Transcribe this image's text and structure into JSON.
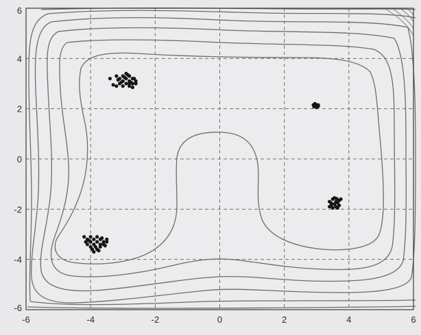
{
  "chart_data": {
    "type": "scatter",
    "xlim": [
      -6,
      6
    ],
    "ylim": [
      -6,
      6
    ],
    "xticks": [
      "-6",
      "-4",
      "-2",
      "0",
      "2",
      "4",
      "6"
    ],
    "yticks": [
      "-6",
      "-4",
      "-2",
      "0",
      "2",
      "4",
      "6"
    ],
    "grid": true,
    "overlay": "contour",
    "colors": {
      "background": "#ececee",
      "points": "#151515",
      "contours": "#6c6c6c",
      "grid": "#6f6f6f"
    },
    "clusters": [
      {
        "center": [
          -3.0,
          3.1
        ],
        "points": [
          [
            -3.2,
            3.3
          ],
          [
            -3.1,
            3.2
          ],
          [
            -3.0,
            3.3
          ],
          [
            -2.9,
            3.4
          ],
          [
            -2.8,
            3.3
          ],
          [
            -2.7,
            3.2
          ],
          [
            -2.6,
            3.1
          ],
          [
            -2.7,
            3.0
          ],
          [
            -2.8,
            2.9
          ],
          [
            -2.9,
            3.0
          ],
          [
            -3.0,
            3.1
          ],
          [
            -3.1,
            3.0
          ],
          [
            -3.2,
            2.9
          ],
          [
            -3.3,
            2.95
          ],
          [
            -3.0,
            2.9
          ],
          [
            -2.8,
            3.1
          ],
          [
            -2.9,
            3.2
          ],
          [
            -2.7,
            2.85
          ],
          [
            -2.6,
            3.0
          ],
          [
            -3.4,
            3.2
          ],
          [
            -2.85,
            3.35
          ],
          [
            -3.05,
            3.05
          ],
          [
            -2.75,
            3.05
          ],
          [
            -3.15,
            3.15
          ],
          [
            -2.95,
            3.25
          ],
          [
            -2.65,
            3.2
          ],
          [
            -2.8,
            3.0
          ]
        ]
      },
      {
        "center": [
          3.0,
          2.1
        ],
        "points": [
          [
            2.9,
            2.15
          ],
          [
            2.95,
            2.1
          ],
          [
            3.0,
            2.15
          ],
          [
            3.05,
            2.1
          ],
          [
            3.0,
            2.05
          ],
          [
            2.95,
            2.2
          ],
          [
            3.05,
            2.15
          ],
          [
            2.92,
            2.08
          ]
        ]
      },
      {
        "center": [
          3.6,
          -1.8
        ],
        "points": [
          [
            3.4,
            -1.7
          ],
          [
            3.5,
            -1.6
          ],
          [
            3.6,
            -1.7
          ],
          [
            3.7,
            -1.65
          ],
          [
            3.55,
            -1.8
          ],
          [
            3.45,
            -1.85
          ],
          [
            3.65,
            -1.75
          ],
          [
            3.7,
            -1.85
          ],
          [
            3.6,
            -1.9
          ],
          [
            3.5,
            -1.95
          ],
          [
            3.4,
            -1.9
          ],
          [
            3.75,
            -1.6
          ],
          [
            3.55,
            -1.55
          ],
          [
            3.65,
            -1.95
          ],
          [
            3.45,
            -1.75
          ],
          [
            3.62,
            -1.58
          ]
        ]
      },
      {
        "center": [
          -3.8,
          -3.3
        ],
        "points": [
          [
            -4.2,
            -3.1
          ],
          [
            -4.1,
            -3.2
          ],
          [
            -4.0,
            -3.1
          ],
          [
            -3.9,
            -3.2
          ],
          [
            -3.8,
            -3.1
          ],
          [
            -3.7,
            -3.2
          ],
          [
            -3.6,
            -3.3
          ],
          [
            -3.5,
            -3.3
          ],
          [
            -3.6,
            -3.4
          ],
          [
            -3.7,
            -3.5
          ],
          [
            -3.8,
            -3.6
          ],
          [
            -3.9,
            -3.7
          ],
          [
            -4.0,
            -3.5
          ],
          [
            -4.1,
            -3.4
          ],
          [
            -3.9,
            -3.4
          ],
          [
            -3.8,
            -3.3
          ],
          [
            -3.7,
            -3.4
          ],
          [
            -4.0,
            -3.3
          ],
          [
            -3.85,
            -3.5
          ],
          [
            -3.65,
            -3.15
          ],
          [
            -3.55,
            -3.45
          ],
          [
            -3.95,
            -3.6
          ],
          [
            -4.15,
            -3.3
          ],
          [
            -3.75,
            -3.65
          ],
          [
            -4.05,
            -3.25
          ],
          [
            -3.5,
            -3.2
          ]
        ]
      }
    ]
  }
}
